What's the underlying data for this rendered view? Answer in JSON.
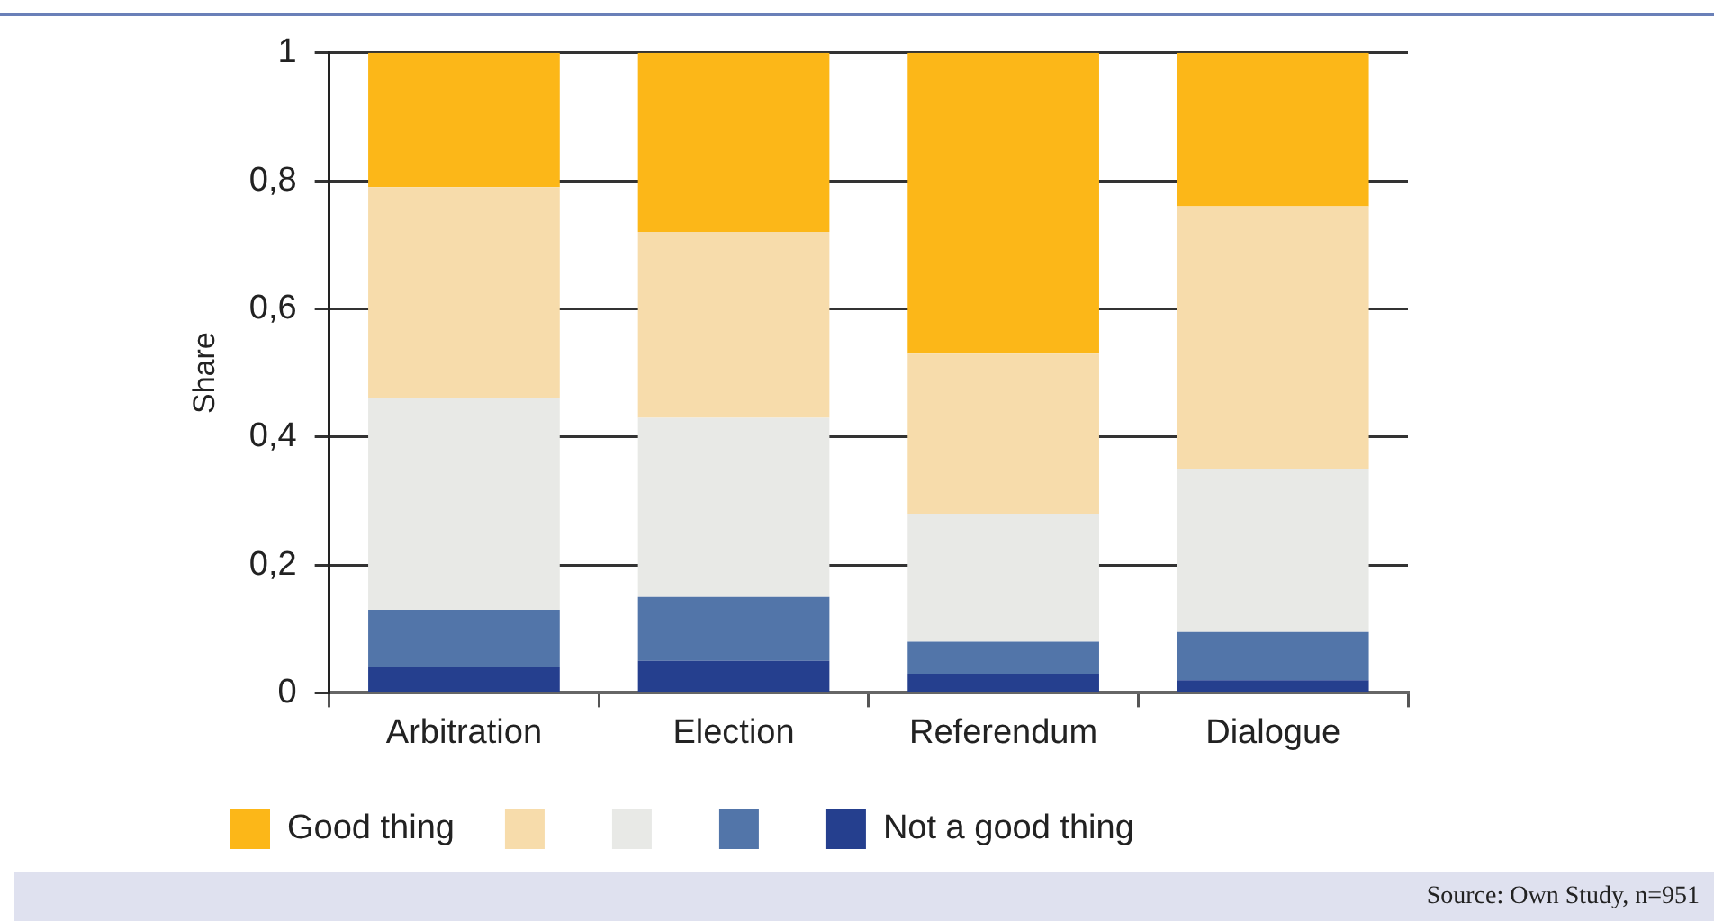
{
  "chart_data": {
    "type": "bar",
    "stacked": true,
    "ylabel": "Share",
    "categories": [
      "Arbitration",
      "Election",
      "Referendum",
      "Dialogue"
    ],
    "series": [
      {
        "name": "Not a good thing",
        "color": "#253f8e",
        "values": [
          0.04,
          0.05,
          0.03,
          0.02
        ]
      },
      {
        "color": "#5275a9",
        "values": [
          0.09,
          0.1,
          0.05,
          0.075
        ]
      },
      {
        "color": "#e8e9e6",
        "values": [
          0.33,
          0.28,
          0.2,
          0.255
        ]
      },
      {
        "color": "#f7dcab",
        "values": [
          0.33,
          0.29,
          0.25,
          0.41
        ]
      },
      {
        "name": "Good thing",
        "color": "#fcb718",
        "values": [
          0.21,
          0.28,
          0.47,
          0.24
        ]
      }
    ],
    "ylim": [
      0,
      1
    ],
    "yticks": [
      0,
      {
        "value": 0.2,
        "label": "0,2"
      },
      {
        "value": 0.4,
        "label": "0,4"
      },
      {
        "value": 0.6,
        "label": "0,6"
      },
      {
        "value": 0.8,
        "label": "0,8"
      },
      1
    ],
    "grid": "y",
    "legend": "bottom",
    "annotations": [
      "Source: Own Study, n=951"
    ]
  }
}
